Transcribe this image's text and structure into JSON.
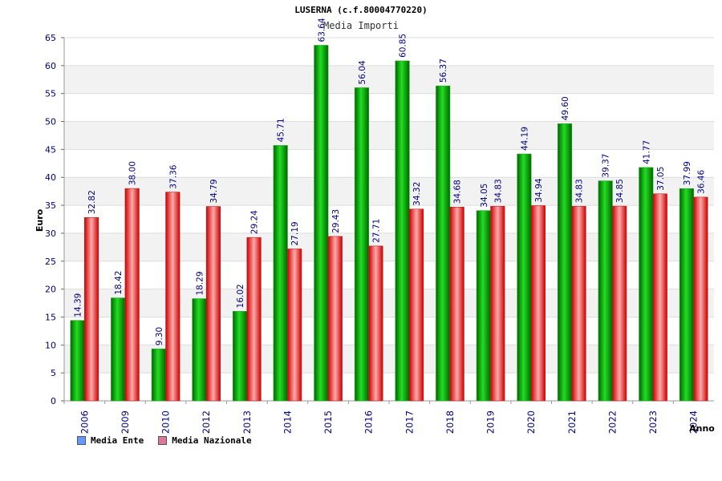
{
  "chart_data": {
    "type": "bar",
    "title": "LUSERNA (c.f.80004770220)",
    "subtitle": "Media Importi",
    "xlabel": "Anno",
    "ylabel": "Euro",
    "ylim": [
      0,
      65
    ],
    "yticks": [
      0,
      5,
      10,
      15,
      20,
      25,
      30,
      35,
      40,
      45,
      50,
      55,
      60,
      65
    ],
    "grid": true,
    "legend_position": "bottom-left",
    "categories": [
      "2006",
      "2009",
      "2010",
      "2012",
      "2013",
      "2014",
      "2015",
      "2016",
      "2017",
      "2018",
      "2019",
      "2020",
      "2021",
      "2022",
      "2023",
      "2024"
    ],
    "series": [
      {
        "name": "Media Ente",
        "color": "#00bb00",
        "legend_color": "#6699ff",
        "values": [
          14.39,
          18.42,
          9.3,
          18.29,
          16.02,
          45.71,
          63.64,
          56.04,
          60.85,
          56.37,
          34.05,
          44.19,
          49.6,
          39.37,
          41.77,
          37.99
        ],
        "labels": [
          "14.39",
          "18.42",
          "9.30",
          "18.29",
          "16.02",
          "45.71",
          "63.64",
          "56.04",
          "60.85",
          "56.37",
          "34.05",
          "44.19",
          "49.60",
          "39.37",
          "41.77",
          "37.99"
        ]
      },
      {
        "name": "Media Nazionale",
        "color": "#ee2222",
        "legend_color": "#dd7799",
        "values": [
          32.82,
          38.0,
          37.36,
          34.79,
          29.24,
          27.19,
          29.43,
          27.71,
          34.32,
          34.68,
          34.83,
          34.94,
          34.83,
          34.85,
          37.05,
          36.46
        ],
        "labels": [
          "32.82",
          "38.00",
          "37.36",
          "34.79",
          "29.24",
          "27.19",
          "29.43",
          "27.71",
          "34.32",
          "34.68",
          "34.83",
          "34.94",
          "34.83",
          "34.85",
          "37.05",
          "36.46"
        ]
      }
    ]
  }
}
